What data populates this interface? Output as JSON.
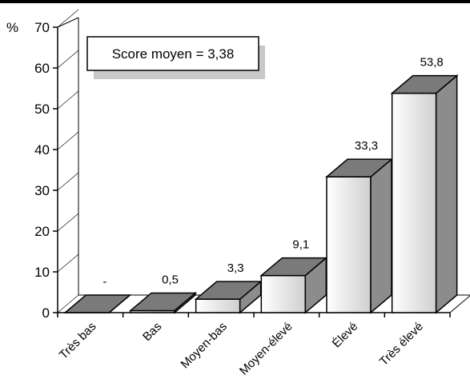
{
  "chart_data": {
    "type": "bar",
    "title": "",
    "xlabel": "",
    "ylabel": "%",
    "ylim": [
      0,
      70
    ],
    "yticks": [
      0,
      10,
      20,
      30,
      40,
      50,
      60,
      70
    ],
    "categories": [
      "Très bas",
      "Bas",
      "Moyen-bas",
      "Moyen-élevé",
      "Élevé",
      "Très élevé"
    ],
    "values": [
      0,
      0.5,
      3.3,
      9.1,
      33.3,
      53.8
    ],
    "value_labels": [
      "-",
      "0,5",
      "3,3",
      "9,1",
      "33,3",
      "53,8"
    ],
    "annotation": "Score moyen = 3,38",
    "style": "3d",
    "colors": {
      "bar_top": "#7a7a7a",
      "bar_side": "#8c8c8c",
      "bar_front_light": "#ffffff",
      "bar_front_dark": "#cfcfcf"
    }
  }
}
